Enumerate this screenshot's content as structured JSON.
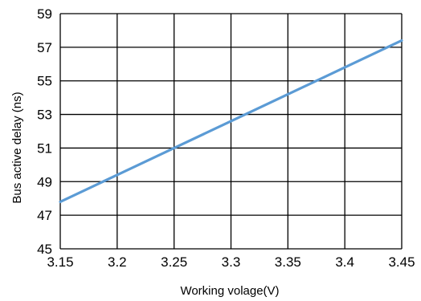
{
  "chart_data": {
    "type": "line",
    "title": "",
    "xlabel": "Working volage(V)",
    "ylabel": "Bus active delay (ns)",
    "xlim": [
      3.15,
      3.45
    ],
    "ylim": [
      45,
      59
    ],
    "x_ticks": [
      "3.15",
      "3.2",
      "3.25",
      "3.3",
      "3.35",
      "3.4",
      "3.45"
    ],
    "y_ticks": [
      "45",
      "47",
      "49",
      "51",
      "53",
      "55",
      "57",
      "59"
    ],
    "grid": true,
    "legend": "none",
    "series": [
      {
        "color": "#5b9bd5",
        "points": [
          {
            "x": 3.15,
            "y": 47.8
          },
          {
            "x": 3.2,
            "y": 49.4
          },
          {
            "x": 3.25,
            "y": 51.0
          },
          {
            "x": 3.3,
            "y": 52.6
          },
          {
            "x": 3.35,
            "y": 54.2
          },
          {
            "x": 3.4,
            "y": 55.8
          },
          {
            "x": 3.45,
            "y": 57.4
          }
        ]
      }
    ]
  }
}
